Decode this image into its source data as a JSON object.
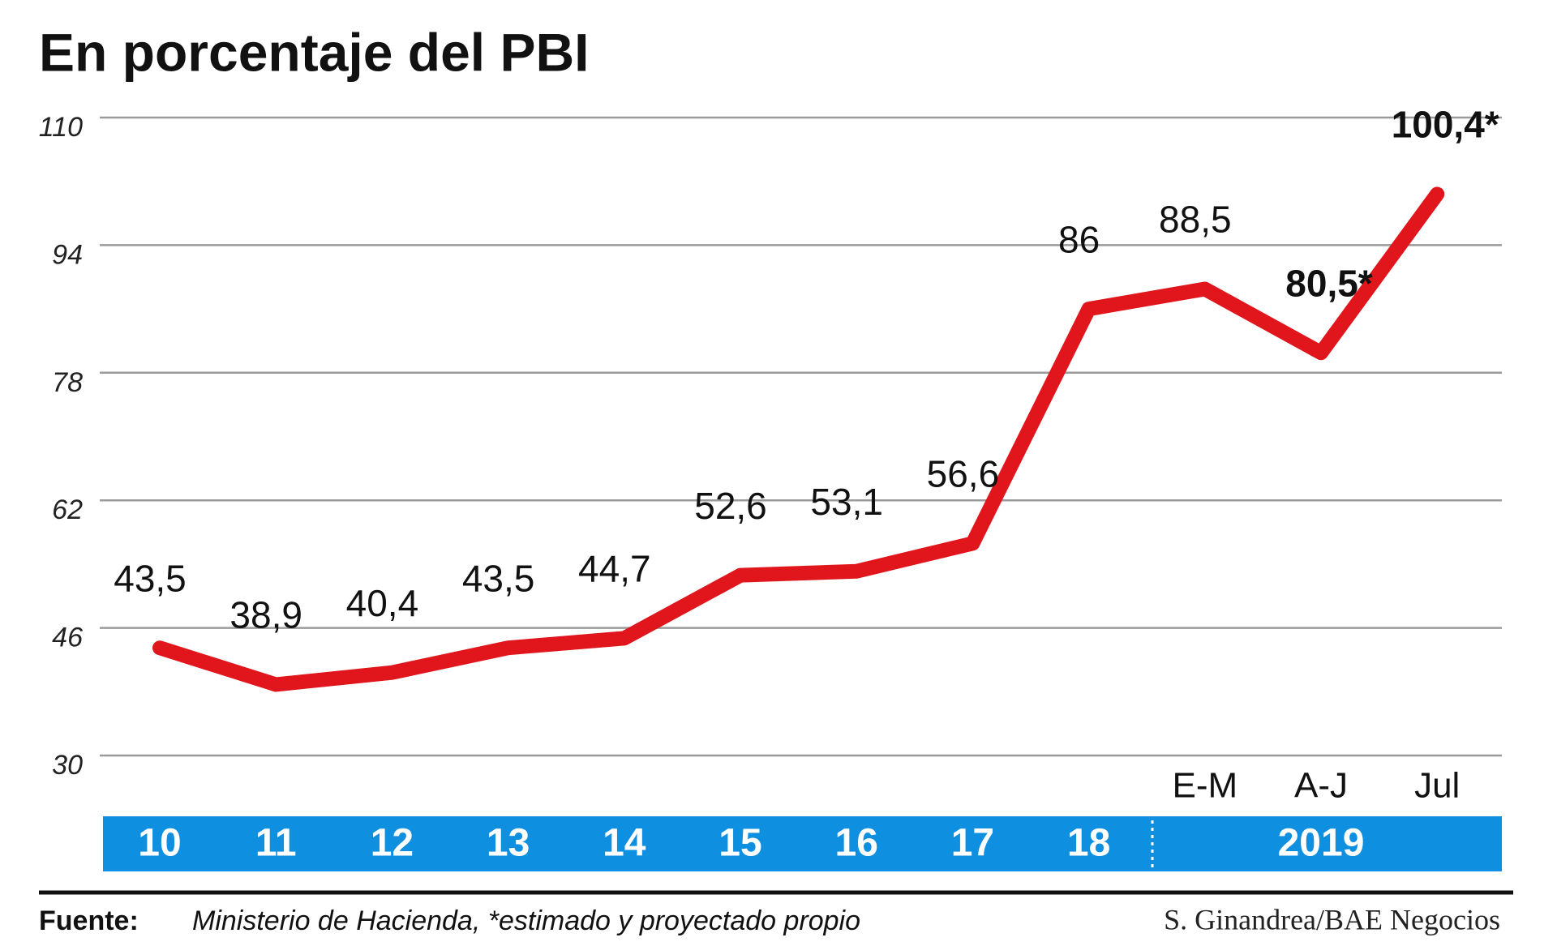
{
  "chart_data": {
    "type": "line",
    "title": "En porcentaje del PBI",
    "categories": [
      "10",
      "11",
      "12",
      "13",
      "14",
      "15",
      "16",
      "17",
      "18",
      "E-M",
      "A-J",
      "Jul"
    ],
    "group_label": "2019",
    "series": [
      {
        "color": "#e0161c",
        "values": [
          43.5,
          38.9,
          40.4,
          43.5,
          44.7,
          52.6,
          53.1,
          56.6,
          86,
          88.5,
          80.5,
          100.4
        ],
        "value_labels": [
          "43,5",
          "38,9",
          "40,4",
          "43,5",
          "44,7",
          "52,6",
          "53,1",
          "56,6",
          "86",
          "88,5",
          "80,5*",
          "100,4*"
        ]
      }
    ],
    "ylim": [
      30,
      110
    ],
    "yticks": [
      30,
      46,
      62,
      78,
      94,
      110
    ],
    "grid": true,
    "source_label": "Fuente:",
    "source": "Ministerio de Hacienda, *estimado y proyectado propio",
    "credit": "S. Ginandrea/BAE Negocios"
  }
}
